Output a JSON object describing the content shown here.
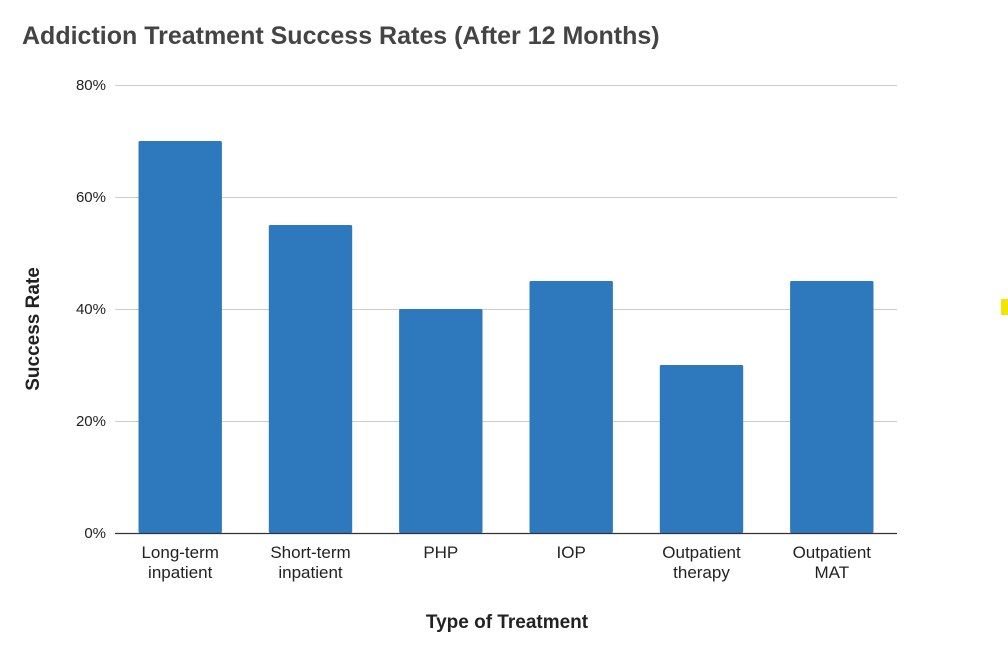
{
  "chart_data": {
    "type": "bar",
    "title": "Addiction Treatment Success Rates (After 12 Months)",
    "xlabel": "Type of Treatment",
    "ylabel": "Success Rate",
    "categories": [
      [
        "Long-term",
        "inpatient"
      ],
      [
        "Short-term",
        "inpatient"
      ],
      [
        "PHP"
      ],
      [
        "IOP"
      ],
      [
        "Outpatient",
        "therapy"
      ],
      [
        "Outpatient",
        "MAT"
      ]
    ],
    "values": [
      70,
      55,
      40,
      45,
      30,
      45
    ],
    "ylim": [
      0,
      80
    ],
    "yticks": [
      0,
      20,
      40,
      60,
      80
    ],
    "ytick_labels": [
      "0%",
      "20%",
      "40%",
      "60%",
      "80%"
    ],
    "grid": true,
    "legend": "none",
    "colors": {
      "bar": "#2e78be",
      "grid": "#cccccc",
      "axis": "#333333",
      "title": "#444444",
      "text": "#222222",
      "marker": "#f2e600"
    }
  }
}
